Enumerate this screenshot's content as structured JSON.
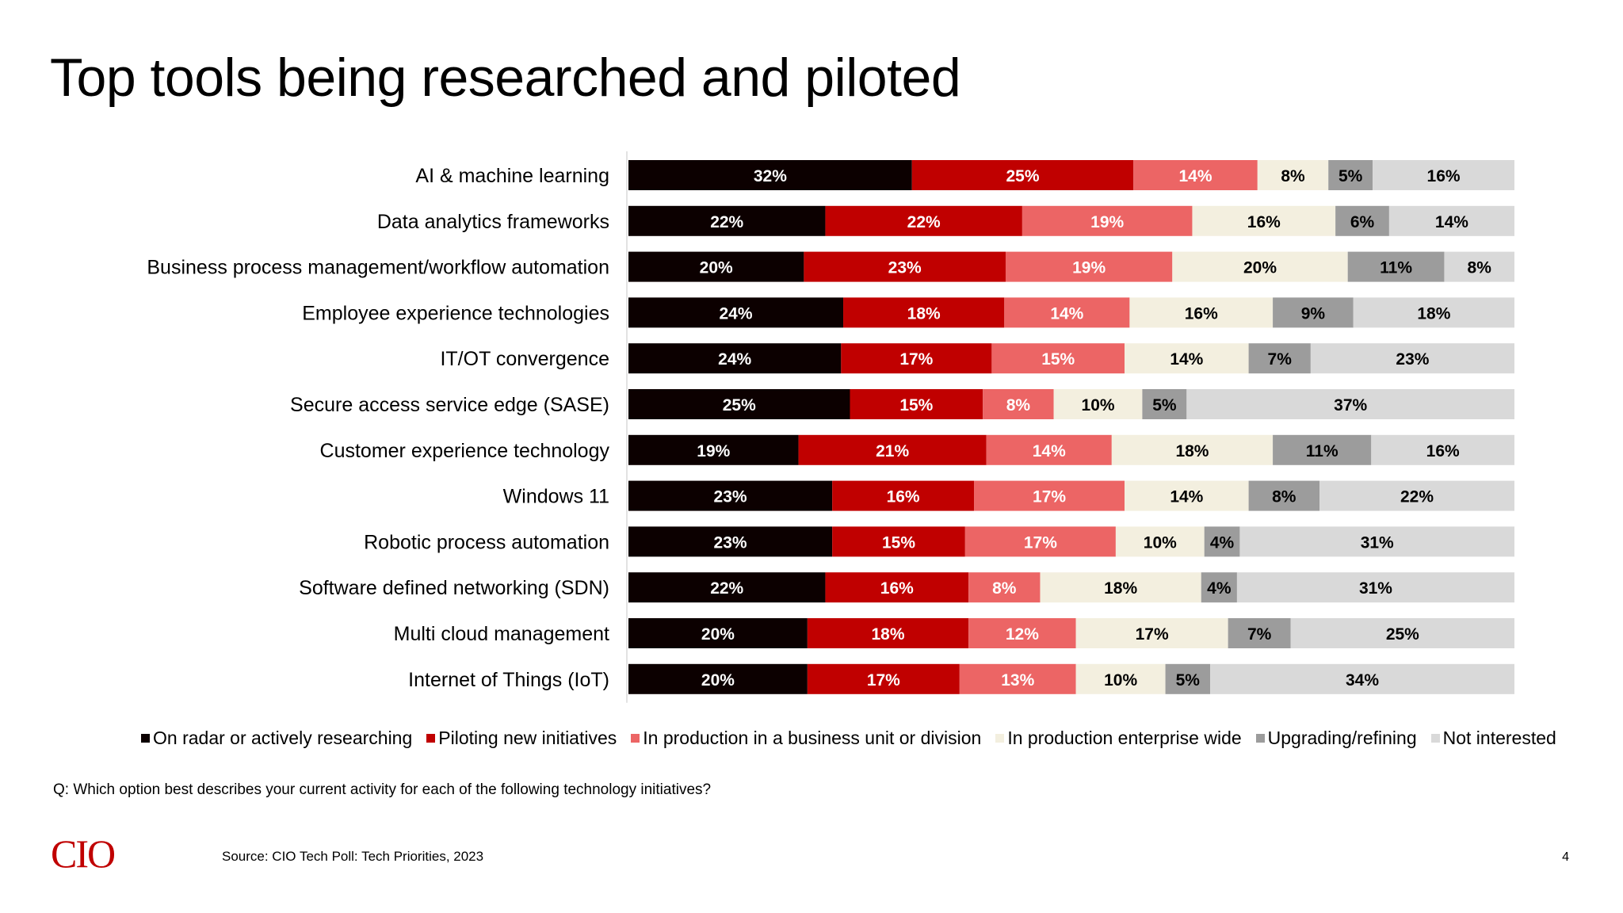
{
  "page": {
    "title": "Top tools being researched and piloted",
    "question": "Q: Which option best describes your current activity for each of the following technology initiatives?",
    "source": "Source: CIO Tech Poll: Tech Priorities, 2023",
    "page_number": "4",
    "logo_text": "CIO"
  },
  "chart_data": {
    "type": "bar",
    "orientation": "horizontal",
    "stacked": true,
    "normalized_percent": true,
    "title": "Top tools being researched and piloted",
    "categories": [
      "AI & machine learning",
      "Data analytics frameworks",
      "Business process management/workflow automation",
      "Employee experience technologies",
      "IT/OT convergence",
      "Secure access service edge (SASE)",
      "Customer experience technology",
      "Windows 11",
      "Robotic process automation",
      "Software defined networking (SDN)",
      "Multi cloud management",
      "Internet of Things (IoT)"
    ],
    "series": [
      {
        "name": "On radar or actively researching",
        "color": "#0c0000",
        "label_color": "#ffffff",
        "values": [
          32,
          22,
          20,
          24,
          24,
          25,
          19,
          23,
          23,
          22,
          20,
          20
        ]
      },
      {
        "name": "Piloting new initiatives",
        "color": "#c00000",
        "label_color": "#ffffff",
        "values": [
          25,
          22,
          23,
          18,
          17,
          15,
          21,
          16,
          15,
          16,
          18,
          17
        ]
      },
      {
        "name": "In production in a business unit or division",
        "color": "#ec6565",
        "label_color": "#ffffff",
        "values": [
          14,
          19,
          19,
          14,
          15,
          8,
          14,
          17,
          17,
          8,
          12,
          13
        ]
      },
      {
        "name": "In production enterprise wide",
        "color": "#f3efdf",
        "label_color": "#000000",
        "values": [
          8,
          16,
          20,
          16,
          14,
          10,
          18,
          14,
          10,
          18,
          17,
          10
        ]
      },
      {
        "name": "Upgrading/refining",
        "color": "#9c9c9c",
        "label_color": "#000000",
        "values": [
          5,
          6,
          11,
          9,
          7,
          5,
          11,
          8,
          4,
          4,
          7,
          5
        ]
      },
      {
        "name": "Not interested",
        "color": "#d9d9d9",
        "label_color": "#000000",
        "values": [
          16,
          14,
          8,
          18,
          23,
          37,
          16,
          22,
          31,
          31,
          25,
          34
        ]
      }
    ],
    "value_suffix": "%",
    "legend_position": "bottom",
    "grid": false
  }
}
